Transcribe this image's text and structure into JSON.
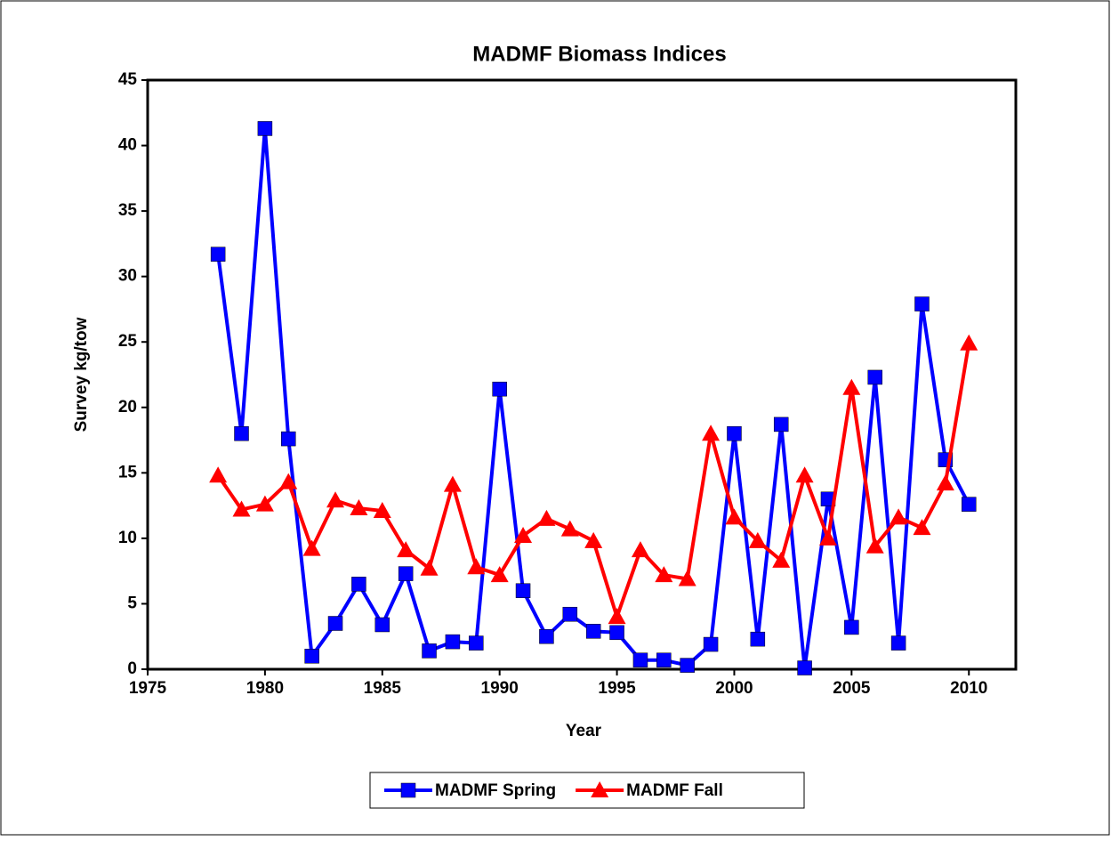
{
  "chart_data": {
    "type": "line",
    "title": "MADMF Biomass Indices",
    "x_label": "Year",
    "y_label": "Survey kg/tow",
    "x": [
      1978,
      1979,
      1980,
      1981,
      1982,
      1983,
      1984,
      1985,
      1986,
      1987,
      1988,
      1989,
      1990,
      1991,
      1992,
      1993,
      1994,
      1995,
      1996,
      1997,
      1998,
      1999,
      2000,
      2001,
      2002,
      2003,
      2004,
      2005,
      2006,
      2007,
      2008,
      2009,
      2010
    ],
    "series": [
      {
        "name": "MADMF Spring",
        "color": "#0000ff",
        "marker": "square",
        "values": [
          31.7,
          18.0,
          41.3,
          17.6,
          1.0,
          3.5,
          6.5,
          3.4,
          7.3,
          1.4,
          2.1,
          2.0,
          21.4,
          6.0,
          2.5,
          4.2,
          2.9,
          2.8,
          0.7,
          0.7,
          0.3,
          1.9,
          18.0,
          2.3,
          18.7,
          0.1,
          13.0,
          3.2,
          22.3,
          2.0,
          27.9,
          16.0,
          12.6
        ]
      },
      {
        "name": "MADMF Fall",
        "color": "#ff0000",
        "marker": "triangle",
        "values": [
          14.8,
          12.2,
          12.6,
          14.3,
          9.2,
          12.9,
          12.3,
          12.1,
          9.1,
          7.7,
          14.1,
          7.8,
          7.2,
          10.2,
          11.5,
          10.7,
          9.8,
          4.0,
          9.1,
          7.2,
          6.9,
          18.0,
          11.6,
          9.8,
          8.3,
          14.8,
          10.0,
          21.5,
          9.4,
          11.6,
          10.8,
          14.2,
          24.9
        ]
      }
    ],
    "xlim": [
      1975,
      2012
    ],
    "xticks": [
      1975,
      1980,
      1985,
      1990,
      1995,
      2000,
      2005,
      2010
    ],
    "ylim": [
      0,
      45
    ],
    "yticks": [
      0,
      5,
      10,
      15,
      20,
      25,
      30,
      35,
      40,
      45
    ],
    "grid": false,
    "legend": "bottom"
  }
}
